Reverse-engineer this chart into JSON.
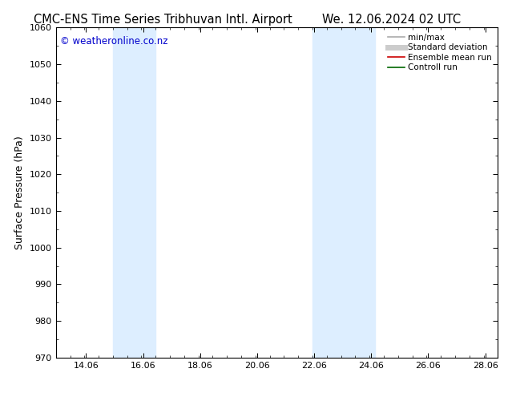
{
  "title_left": "CMC-ENS Time Series Tribhuvan Intl. Airport",
  "title_right": "We. 12.06.2024 02 UTC",
  "ylabel": "Surface Pressure (hPa)",
  "ylim": [
    970,
    1060
  ],
  "yticks": [
    970,
    980,
    990,
    1000,
    1010,
    1020,
    1030,
    1040,
    1050,
    1060
  ],
  "xlim": [
    13.0,
    28.5
  ],
  "xtick_labels": [
    "14.06",
    "16.06",
    "18.06",
    "20.06",
    "22.06",
    "24.06",
    "26.06",
    "28.06"
  ],
  "xtick_positions": [
    14.06,
    16.06,
    18.06,
    20.06,
    22.06,
    24.06,
    26.06,
    28.06
  ],
  "shade_bands": [
    {
      "xmin": 15.0,
      "xmax": 16.5
    },
    {
      "xmin": 22.0,
      "xmax": 24.2
    }
  ],
  "shade_color": "#ddeeff",
  "background_color": "#ffffff",
  "copyright_text": "© weatheronline.co.nz",
  "copyright_color": "#0000cc",
  "legend_items": [
    {
      "label": "min/max",
      "color": "#aaaaaa",
      "lw": 1.2,
      "style": "-"
    },
    {
      "label": "Standard deviation",
      "color": "#cccccc",
      "lw": 5,
      "style": "-"
    },
    {
      "label": "Ensemble mean run",
      "color": "#cc0000",
      "lw": 1.2,
      "style": "-"
    },
    {
      "label": "Controll run",
      "color": "#006600",
      "lw": 1.2,
      "style": "-"
    }
  ],
  "grid_color": "#cccccc",
  "tick_color": "#000000",
  "border_color": "#000000",
  "title_fontsize": 10.5,
  "label_fontsize": 9,
  "tick_fontsize": 8,
  "legend_fontsize": 7.5,
  "copyright_fontsize": 8.5
}
